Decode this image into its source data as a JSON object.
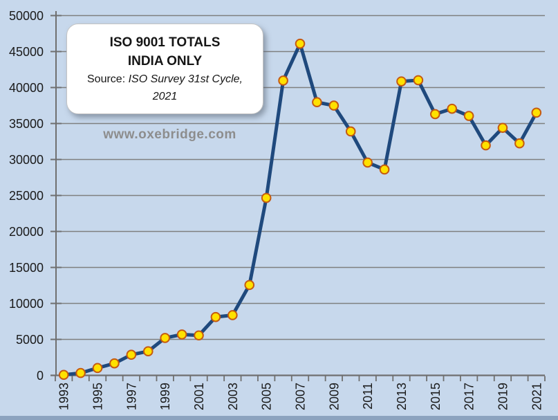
{
  "page": {
    "background": "#c7d8ec",
    "bottom_strip_color": "#8ca3bf"
  },
  "title_box": {
    "line1": "ISO 9001 TOTALS",
    "line2": "INDIA ONLY",
    "source_prefix": "Source: ",
    "source_italic": "ISO Survey 31st Cycle,",
    "source_line2": "2021"
  },
  "watermark": {
    "text": "www.oxebridge.com",
    "color": "#8d8d8d"
  },
  "chart_data": {
    "type": "line",
    "title": "ISO 9001 TOTALS INDIA ONLY",
    "subtitle": "Source: ISO Survey 31st Cycle, 2021",
    "xlabel": "",
    "ylabel": "",
    "x": [
      1993,
      1994,
      1995,
      1996,
      1997,
      1998,
      1999,
      2000,
      2001,
      2002,
      2003,
      2004,
      2005,
      2006,
      2007,
      2008,
      2009,
      2010,
      2011,
      2012,
      2013,
      2014,
      2015,
      2016,
      2017,
      2018,
      2019,
      2020,
      2021
    ],
    "series": [
      {
        "name": "ISO 9001 totals - India",
        "values": [
          73,
          328,
          1023,
          1665,
          2865,
          3344,
          5200,
          5682,
          5554,
          8110,
          8367,
          12558,
          24660,
          40967,
          46091,
          37958,
          37493,
          33900,
          29574,
          28611,
          40848,
          41016,
          36305,
          37052,
          36053,
          31959,
          34397,
          32240,
          36505
        ]
      }
    ],
    "ylim": [
      0,
      50000
    ],
    "ytick_step": 5000,
    "ytick_labels": [
      "0",
      "5000",
      "10000",
      "15000",
      "20000",
      "25000",
      "30000",
      "35000",
      "40000",
      "45000",
      "50000"
    ],
    "xtick_labels": [
      "1993",
      "1995",
      "1997",
      "1999",
      "2001",
      "2003",
      "2005",
      "2007",
      "2009",
      "2011",
      "2013",
      "2015",
      "2017",
      "2019",
      "2021"
    ],
    "grid": true,
    "legend": "none",
    "colors": {
      "line": "#1f497d",
      "marker_fill": "#ffe100",
      "marker_stroke": "#c55a11",
      "grid": "#7f7f7f",
      "axis": "#6f6f6f",
      "tick_label": "#1a1a1a"
    }
  }
}
